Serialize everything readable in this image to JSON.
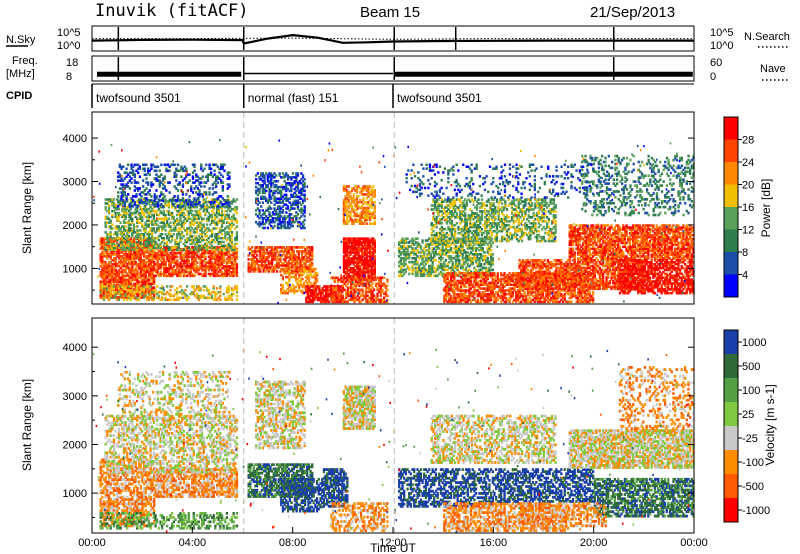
{
  "header": {
    "station": "Inuvik (fitACF)",
    "beam": "Beam 15",
    "date": "21/Sep/2013"
  },
  "colors": {
    "power_scale": [
      "#0000ff",
      "#1d4fa8",
      "#2e7d4f",
      "#5aa05a",
      "#f0c000",
      "#ff8800",
      "#ff4400",
      "#ff0000"
    ],
    "velocity_scale": [
      "#1b3fa8",
      "#2e6a3a",
      "#55a045",
      "#80c840",
      "#c8c8c8",
      "#ff8c00",
      "#ff5a00",
      "#ff0000"
    ],
    "ground_scatter": "#c8c8c8"
  },
  "chart_data": [
    {
      "type": "line",
      "name": "noise-panel",
      "left_label": "N.Sky",
      "right_label": "N.Search",
      "left_ticks": [
        "10^5",
        "10^0"
      ],
      "right_ticks": [
        "10^5",
        "10^0"
      ],
      "series": [
        {
          "name": "N.Sky",
          "x": [
            0,
            1,
            2,
            4,
            6,
            6.05,
            7,
            8,
            9,
            10,
            11,
            12,
            14,
            16,
            18,
            20,
            22,
            24
          ],
          "y": [
            100,
            120,
            150,
            160,
            130,
            20,
            300,
            2000,
            500,
            30,
            40,
            60,
            80,
            90,
            100,
            95,
            100,
            100
          ]
        },
        {
          "name": "N.Search",
          "x": [
            0,
            4,
            8,
            12,
            16,
            20,
            24
          ],
          "y": [
            300,
            300,
            400,
            200,
            300,
            300,
            300
          ]
        }
      ]
    },
    {
      "type": "line",
      "name": "frequency-panel",
      "left_label": "Freq.",
      "left_unit": "[MHz]",
      "right_label": "Nave",
      "left_ticks": [
        "18",
        "8"
      ],
      "right_ticks": [
        "60",
        "0"
      ],
      "series": [
        {
          "name": "Freq.",
          "x": [
            0,
            6,
            6.05,
            12,
            12.05,
            24
          ],
          "y": [
            10.5,
            10.5,
            10.5,
            10.5,
            10.5,
            10.5
          ]
        }
      ]
    },
    {
      "type": "table",
      "name": "cpid-panel",
      "label": "CPID",
      "segments": [
        {
          "text": "twofsound 3501",
          "start": 0,
          "end": 6.05
        },
        {
          "text": "normal (fast) 151",
          "start": 6.05,
          "end": 12
        },
        {
          "text": "twofsound 3501",
          "start": 12,
          "end": 24
        }
      ]
    },
    {
      "type": "heatmap",
      "name": "power",
      "ylabel": "Slant Range [km]",
      "yticks": [
        1000,
        2000,
        3000,
        4000
      ],
      "ylim": [
        180,
        4600
      ],
      "xlim": [
        0,
        24
      ],
      "colorbar_label": "Power [dB]",
      "colorbar_ticks": [
        "28",
        "24",
        "20",
        "16",
        "12",
        "8",
        "4"
      ],
      "blobs": [
        {
          "t0": 0.3,
          "t1": 2.5,
          "r0": 300,
          "r1": 1700,
          "lvl": 6,
          "d": 0.8
        },
        {
          "t0": 2.5,
          "t1": 5.8,
          "r0": 800,
          "r1": 1500,
          "lvl": 6,
          "d": 0.75
        },
        {
          "t0": 0.5,
          "t1": 5.8,
          "r0": 1400,
          "r1": 2600,
          "lvl": 3,
          "d": 0.5
        },
        {
          "t0": 1.0,
          "t1": 5.5,
          "r0": 2400,
          "r1": 3400,
          "lvl": 1,
          "d": 0.3
        },
        {
          "t0": 0.3,
          "t1": 5.8,
          "r0": 250,
          "r1": 600,
          "lvl": 4,
          "d": 0.4
        },
        {
          "t0": 6.2,
          "t1": 8.8,
          "r0": 900,
          "r1": 1500,
          "lvl": 6,
          "d": 0.7
        },
        {
          "t0": 6.5,
          "t1": 8.5,
          "r0": 1900,
          "r1": 3200,
          "lvl": 1,
          "d": 0.5
        },
        {
          "t0": 7.5,
          "t1": 9.0,
          "r0": 400,
          "r1": 1000,
          "lvl": 5,
          "d": 0.5
        },
        {
          "t0": 8.5,
          "t1": 10.0,
          "r0": 200,
          "r1": 600,
          "lvl": 7,
          "d": 0.8
        },
        {
          "t0": 10.0,
          "t1": 11.3,
          "r0": 700,
          "r1": 1700,
          "lvl": 7,
          "d": 0.85
        },
        {
          "t0": 10.0,
          "t1": 11.3,
          "r0": 2000,
          "r1": 2900,
          "lvl": 5,
          "d": 0.6
        },
        {
          "t0": 9.5,
          "t1": 11.8,
          "r0": 200,
          "r1": 800,
          "lvl": 6,
          "d": 0.6
        },
        {
          "t0": 12.2,
          "t1": 16.0,
          "r0": 800,
          "r1": 1700,
          "lvl": 3,
          "d": 0.55
        },
        {
          "t0": 13.5,
          "t1": 18.5,
          "r0": 1600,
          "r1": 2600,
          "lvl": 3,
          "d": 0.5
        },
        {
          "t0": 14.0,
          "t1": 20.0,
          "r0": 200,
          "r1": 900,
          "lvl": 6,
          "d": 0.7
        },
        {
          "t0": 17.0,
          "t1": 22.0,
          "r0": 500,
          "r1": 1200,
          "lvl": 6,
          "d": 0.7
        },
        {
          "t0": 19.0,
          "t1": 24.0,
          "r0": 1200,
          "r1": 2000,
          "lvl": 6,
          "d": 0.75
        },
        {
          "t0": 21.0,
          "t1": 24.0,
          "r0": 400,
          "r1": 1200,
          "lvl": 7,
          "d": 0.7
        },
        {
          "t0": 19.5,
          "t1": 24.0,
          "r0": 2200,
          "r1": 3600,
          "lvl": 2,
          "d": 0.25
        },
        {
          "t0": 12.5,
          "t1": 20.0,
          "r0": 2600,
          "r1": 3400,
          "lvl": 1,
          "d": 0.15
        }
      ]
    },
    {
      "type": "heatmap",
      "name": "velocity",
      "ylabel": "Slant Range [km]",
      "yticks": [
        1000,
        2000,
        3000,
        4000
      ],
      "ylim": [
        180,
        4600
      ],
      "xlim": [
        0,
        24
      ],
      "xticks": [
        "00:00",
        "04:00",
        "08:00",
        "12:00",
        "16:00",
        "20:00",
        "00:00"
      ],
      "xlabel": "Time UT",
      "colorbar_label": "Velocity [m s-1]",
      "colorbar_ticks": [
        "1000",
        "500",
        "100",
        "25",
        "-25",
        "-100",
        "-500",
        "-1000"
      ],
      "blobs": [
        {
          "t0": 0.3,
          "t1": 2.5,
          "r0": 300,
          "r1": 1700,
          "lvl": 5,
          "d": 0.6
        },
        {
          "t0": 2.5,
          "t1": 5.8,
          "r0": 900,
          "r1": 1500,
          "lvl": 5,
          "d": 0.7
        },
        {
          "t0": 0.5,
          "t1": 5.8,
          "r0": 1400,
          "r1": 2600,
          "lvl": 4,
          "d": 0.45
        },
        {
          "t0": 1.0,
          "t1": 5.5,
          "r0": 2500,
          "r1": 3500,
          "lvl": 4,
          "d": 0.3
        },
        {
          "t0": 0.3,
          "t1": 5.8,
          "r0": 250,
          "r1": 600,
          "lvl": 2,
          "d": 0.4
        },
        {
          "t0": 6.2,
          "t1": 8.8,
          "r0": 900,
          "r1": 1600,
          "lvl": 1,
          "d": 0.7
        },
        {
          "t0": 6.5,
          "t1": 8.5,
          "r0": 1900,
          "r1": 3300,
          "lvl": 4,
          "d": 0.55
        },
        {
          "t0": 7.5,
          "t1": 9.2,
          "r0": 600,
          "r1": 1300,
          "lvl": 0,
          "d": 0.6
        },
        {
          "t0": 9.2,
          "t1": 10.2,
          "r0": 700,
          "r1": 1500,
          "lvl": 0,
          "d": 0.7
        },
        {
          "t0": 10.0,
          "t1": 11.3,
          "r0": 2300,
          "r1": 3200,
          "lvl": 4,
          "d": 0.8
        },
        {
          "t0": 9.5,
          "t1": 11.8,
          "r0": 200,
          "r1": 800,
          "lvl": 5,
          "d": 0.5
        },
        {
          "t0": 12.2,
          "t1": 16.0,
          "r0": 700,
          "r1": 1500,
          "lvl": 0,
          "d": 0.5
        },
        {
          "t0": 13.5,
          "t1": 18.5,
          "r0": 1600,
          "r1": 2600,
          "lvl": 4,
          "d": 0.5
        },
        {
          "t0": 14.0,
          "t1": 19.0,
          "r0": 200,
          "r1": 800,
          "lvl": 5,
          "d": 0.65
        },
        {
          "t0": 16.0,
          "t1": 20.0,
          "r0": 800,
          "r1": 1500,
          "lvl": 0,
          "d": 0.55
        },
        {
          "t0": 19.0,
          "t1": 24.0,
          "r0": 1500,
          "r1": 2300,
          "lvl": 4,
          "d": 0.8
        },
        {
          "t0": 20.0,
          "t1": 24.0,
          "r0": 500,
          "r1": 1300,
          "lvl": 1,
          "d": 0.65
        },
        {
          "t0": 21.0,
          "t1": 24.0,
          "r0": 2300,
          "r1": 3600,
          "lvl": 5,
          "d": 0.25
        },
        {
          "t0": 17.0,
          "t1": 20.5,
          "r0": 300,
          "r1": 800,
          "lvl": 5,
          "d": 0.5
        }
      ]
    }
  ]
}
